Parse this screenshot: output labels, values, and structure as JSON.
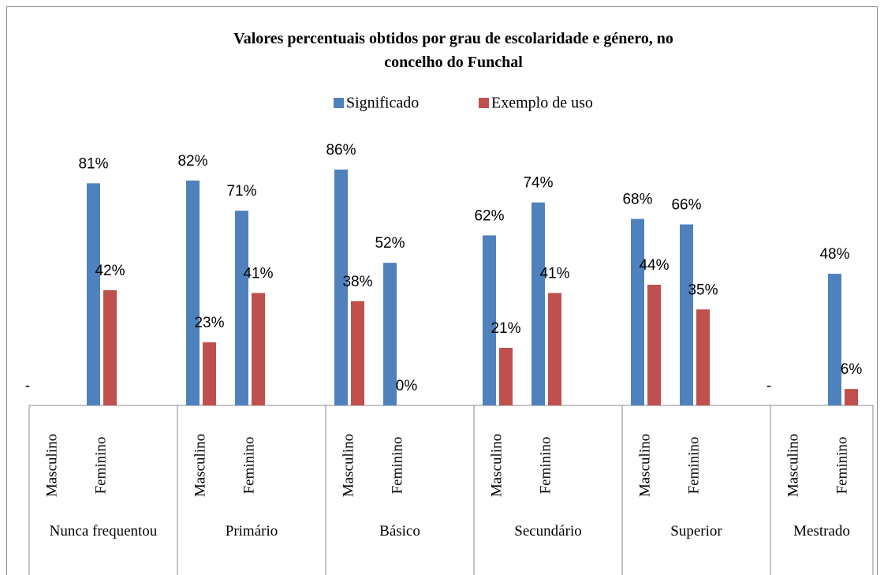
{
  "chart_data": {
    "type": "bar",
    "title": "Valores percentuais obtidos por grau de escolaridade e género, no concelho do Funchal",
    "groups": [
      "Nunca frequentou",
      "Primário",
      "Básico",
      "Secundário",
      "Superior",
      "Mestrado"
    ],
    "categories": [
      "Masculino",
      "Feminino",
      "Masculino",
      "Feminino",
      "Masculino",
      "Feminino",
      "Masculino",
      "Feminino",
      "Masculino",
      "Feminino",
      "Masculino",
      "Feminino"
    ],
    "series": [
      {
        "name": "Significado",
        "color": "#4f81bd",
        "values": [
          null,
          81,
          82,
          71,
          86,
          52,
          62,
          74,
          68,
          66,
          null,
          48
        ],
        "value_labels": [
          "-",
          "81%",
          "82%",
          "71%",
          "86%",
          "52%",
          "62%",
          "74%",
          "68%",
          "66%",
          "-",
          "48%"
        ]
      },
      {
        "name": "Exemplo de uso",
        "color": "#c0504d",
        "values": [
          null,
          42,
          23,
          41,
          38,
          0,
          21,
          41,
          44,
          35,
          null,
          6
        ],
        "value_labels": [
          null,
          "42%",
          "23%",
          "41%",
          "38%",
          "0%",
          "21%",
          "41%",
          "44%",
          "35%",
          null,
          "6%"
        ]
      }
    ],
    "ylim": [
      0,
      100
    ],
    "legend": "top"
  }
}
